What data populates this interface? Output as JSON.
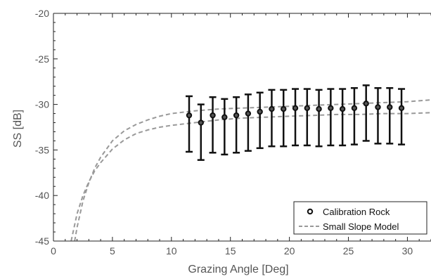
{
  "chart_data": {
    "type": "scatter",
    "title": "",
    "xlabel": "Grazing Angle [Deg]",
    "ylabel": "SS [dB]",
    "xlim": [
      0,
      32
    ],
    "ylim": [
      -45,
      -20
    ],
    "x_ticks": [
      "0",
      "5",
      "10",
      "15",
      "20",
      "25",
      "30"
    ],
    "y_ticks": [
      "-45",
      "-40",
      "-35",
      "-30",
      "-25",
      "-20"
    ],
    "grid": false,
    "legend_position": "bottom-right",
    "series": [
      {
        "name": "Calibration Rock",
        "style": "open-circle-errorbar",
        "color": "#111111",
        "x": [
          11.5,
          12.5,
          13.5,
          14.5,
          15.5,
          16.5,
          17.5,
          18.5,
          19.5,
          20.5,
          21.5,
          22.5,
          23.5,
          24.5,
          25.5,
          26.5,
          27.5,
          28.5,
          29.5
        ],
        "y": [
          -31.2,
          -32.0,
          -31.2,
          -31.4,
          -31.2,
          -31.0,
          -30.8,
          -30.5,
          -30.5,
          -30.4,
          -30.4,
          -30.5,
          -30.4,
          -30.5,
          -30.4,
          -29.9,
          -30.3,
          -30.3,
          -30.4
        ],
        "y_lower": [
          -35.2,
          -36.1,
          -35.3,
          -35.5,
          -35.3,
          -35.1,
          -34.8,
          -34.6,
          -34.6,
          -34.5,
          -34.5,
          -34.6,
          -34.5,
          -34.5,
          -34.4,
          -34.0,
          -34.3,
          -34.3,
          -34.4
        ],
        "y_upper": [
          -29.1,
          -30.0,
          -29.2,
          -29.4,
          -29.2,
          -28.9,
          -28.7,
          -28.4,
          -28.4,
          -28.3,
          -28.3,
          -28.4,
          -28.3,
          -28.3,
          -28.2,
          -27.9,
          -28.2,
          -28.2,
          -28.3
        ]
      },
      {
        "name": "Small Slope Model",
        "style": "dashed-line",
        "color": "#999999",
        "curves": [
          {
            "x": [
              1.8,
              2,
              2.5,
              3,
              3.5,
              4,
              5,
              6,
              7,
              8,
              9,
              10,
              12,
              14,
              16,
              18,
              20,
              22,
              24,
              26,
              28,
              30,
              32
            ],
            "y": [
              -45,
              -43.5,
              -40.6,
              -38.6,
              -37.0,
              -35.8,
              -34.0,
              -32.9,
              -32.2,
              -31.7,
              -31.3,
              -31.0,
              -30.7,
              -30.5,
              -30.4,
              -30.3,
              -30.2,
              -30.1,
              -30.0,
              -29.9,
              -29.8,
              -29.7,
              -29.5
            ]
          },
          {
            "x": [
              1.5,
              2,
              2.5,
              3,
              3.5,
              4,
              5,
              6,
              7,
              8,
              9,
              10,
              12,
              14,
              16,
              18,
              20,
              22,
              24,
              26,
              28,
              30,
              32
            ],
            "y": [
              -45,
              -42.0,
              -40.0,
              -38.5,
              -37.3,
              -36.4,
              -34.9,
              -33.9,
              -33.2,
              -32.8,
              -32.5,
              -32.3,
              -32.0,
              -31.7,
              -31.5,
              -31.4,
              -31.3,
              -31.2,
              -31.1,
              -31.1,
              -31.0,
              -31.0,
              -30.9
            ]
          }
        ]
      }
    ]
  }
}
